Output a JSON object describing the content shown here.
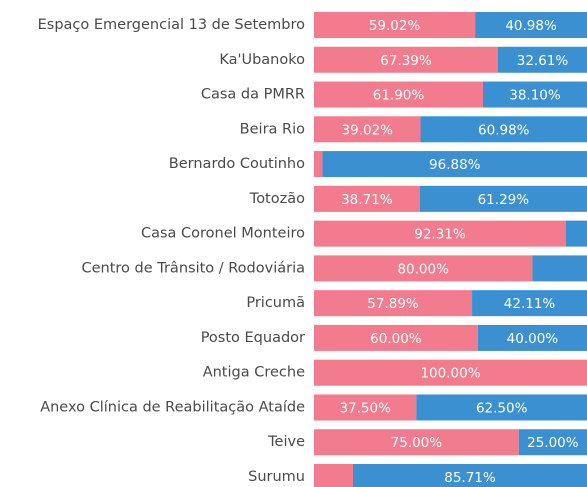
{
  "chart_data": {
    "type": "stacked-barh",
    "categories": [
      "Espaço Emergencial 13 de Setembro",
      "Ka'Ubanoko",
      "Casa da PMRR",
      "Beira Rio",
      "Bernardo Coutinho",
      "Totozão",
      "Casa Coronel Monteiro",
      "Centro de Trânsito / Rodoviária",
      "Pricumã",
      "Posto Equador",
      "Antiga Creche",
      "Anexo Clínica de Reabilitação Ataíde",
      "Teive",
      "Surumu"
    ],
    "xlim": [
      0,
      100
    ],
    "series": [
      {
        "color": "#f27b8e",
        "values": [
          59.02,
          67.39,
          61.9,
          39.02,
          3.12,
          38.71,
          92.31,
          80.0,
          57.89,
          60.0,
          100.0,
          37.5,
          75.0,
          14.29
        ],
        "value_labels": [
          "59.02%",
          "67.39%",
          "61.90%",
          "39.02%",
          null,
          "38.71%",
          "92.31%",
          "80.00%",
          "57.89%",
          "60.00%",
          "100.00%",
          "37.50%",
          "75.00%",
          null
        ]
      },
      {
        "color": "#3b90d2",
        "values": [
          40.98,
          32.61,
          38.1,
          60.98,
          96.88,
          61.29,
          7.69,
          20.0,
          42.11,
          40.0,
          0,
          62.5,
          25.0,
          85.71
        ],
        "value_labels": [
          "40.98%",
          "32.61%",
          "38.10%",
          "60.98%",
          "96.88%",
          "61.29%",
          null,
          null,
          "42.11%",
          "40.00%",
          null,
          "62.50%",
          "25.00%",
          "85.71%"
        ]
      }
    ]
  }
}
